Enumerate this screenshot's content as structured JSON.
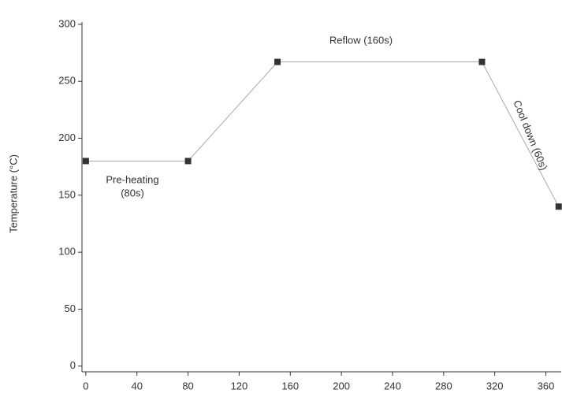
{
  "chart_data": {
    "type": "line",
    "y_label": "Temperature (°C)",
    "x": [
      0,
      80,
      150,
      310,
      370
    ],
    "values": [
      180,
      180,
      267,
      267,
      140
    ],
    "color": "#333333",
    "line_color": "#aaaaaa",
    "xlim": [
      -3,
      372
    ],
    "xticks": [
      0,
      40,
      80,
      120,
      160,
      200,
      240,
      280,
      320,
      360
    ],
    "ylim": [
      -5,
      302
    ],
    "yticks": [
      0,
      50,
      100,
      150,
      200,
      250,
      300
    ],
    "annotations": [
      "Pre-heating",
      "(80s)",
      "Reflow (160s)",
      "Cool down (60s)"
    ]
  }
}
